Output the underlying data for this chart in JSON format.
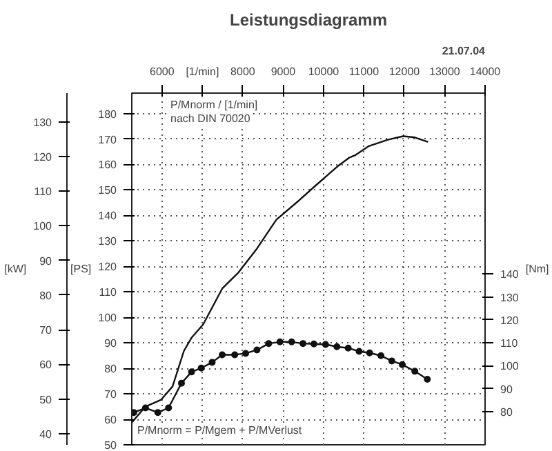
{
  "chart_data": {
    "type": "line",
    "title": "Leistungsdiagramm",
    "subtitle": "21.07.04",
    "ylabel": "[PS]",
    "y2label": "[Nm]",
    "y3label": "[kW]",
    "xlabel": "[1/min]",
    "annotations": [
      "P/Mnorm / [1/min]",
      "nach DIN 70020",
      "P/Mnorm = P/Mgem + P/MVerlust"
    ],
    "xlim": [
      5250,
      14000
    ],
    "xticks": [
      6000,
      {
        "value": 7000,
        "label": null
      },
      8000,
      9000,
      10000,
      11000,
      12000,
      13000,
      14000
    ],
    "ylim": [
      50,
      188
    ],
    "yticks": [
      50,
      60,
      70,
      80,
      90,
      100,
      110,
      120,
      130,
      140,
      150,
      160,
      170,
      180
    ],
    "y3lim": [
      36.8,
      138.3
    ],
    "y3ticks": [
      40,
      50,
      60,
      70,
      80,
      90,
      100,
      110,
      120,
      130
    ],
    "y2lim": [
      65.5,
      219
    ],
    "y2ticks": [
      80,
      90,
      100,
      110,
      120,
      130,
      140
    ],
    "grid": true,
    "line_style": "solid",
    "series": [
      {
        "color": "#111111",
        "marker": "none",
        "x": [
          5257,
          5590,
          5970,
          6260,
          6540,
          6730,
          7020,
          7490,
          7880,
          8350,
          8830,
          9400,
          9780,
          10350,
          10640,
          10780,
          11110,
          11590,
          11970,
          12260,
          12590
        ],
        "values": [
          58.9,
          65,
          67.6,
          72.9,
          86.8,
          92,
          97.3,
          111.3,
          117.4,
          127,
          138.3,
          146,
          151.4,
          159.3,
          162.7,
          163.6,
          167.1,
          169.7,
          171.1,
          170.6,
          168.8
        ]
      },
      {
        "color": "#111111",
        "marker": "circle",
        "axis": "y2",
        "x": [
          5300,
          5590,
          5895,
          6160,
          6480,
          6730,
          6970,
          7240,
          7490,
          7800,
          8070,
          8350,
          8640,
          8920,
          9210,
          9490,
          9760,
          10050,
          10330,
          10610,
          10880,
          11140,
          11420,
          11690,
          11950,
          12260,
          12570
        ],
        "values": [
          79.6,
          81.6,
          79.6,
          81.6,
          92.4,
          97.3,
          99,
          101.5,
          104.8,
          104.8,
          105.4,
          106.9,
          109.7,
          110.4,
          110.4,
          109.7,
          109.5,
          109.3,
          108.3,
          107.7,
          106.3,
          105.6,
          104.4,
          102.1,
          100.5,
          97.6,
          94.1
        ]
      }
    ]
  }
}
